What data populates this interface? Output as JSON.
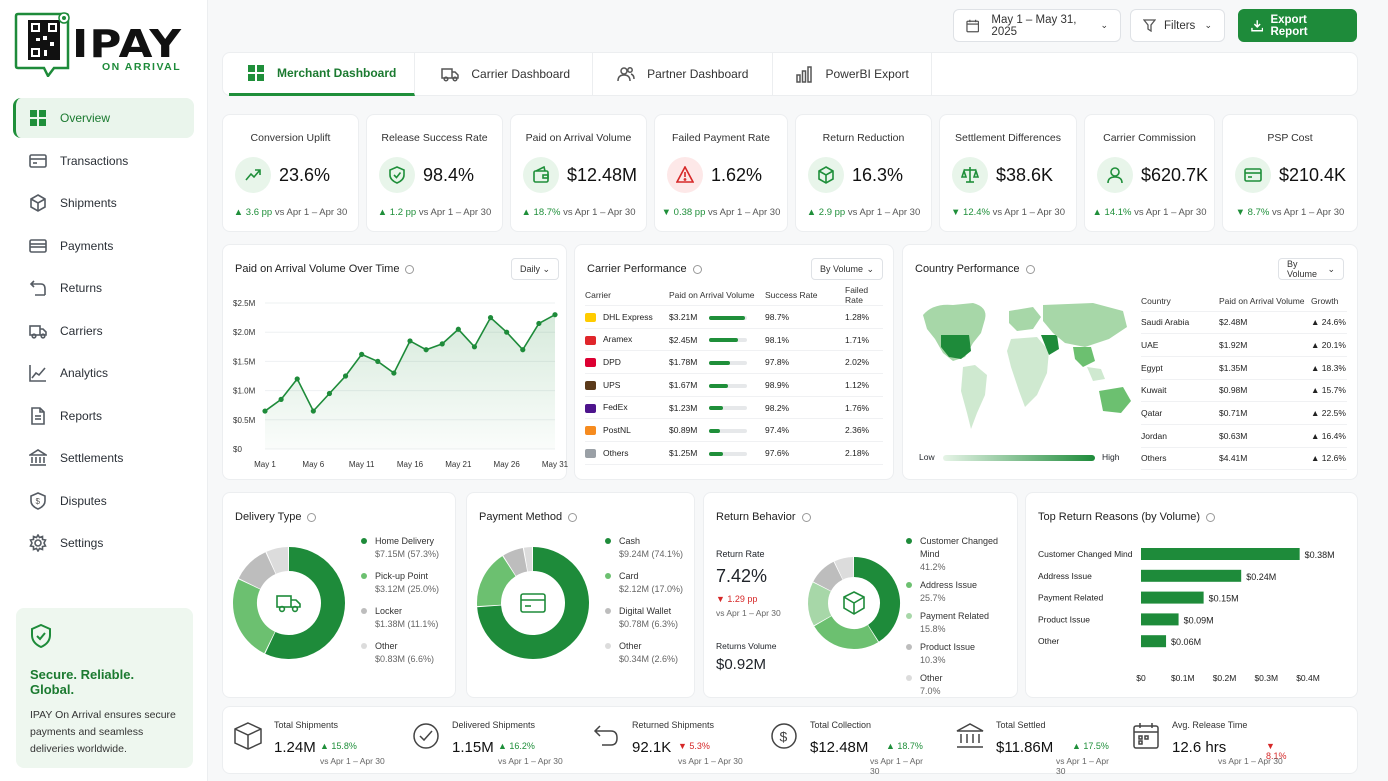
{
  "brand": {
    "name": "IPAY",
    "tagline": "ON ARRIVAL",
    "accent": "#1e8b3a"
  },
  "sidebar": {
    "items": [
      {
        "label": "Overview",
        "icon": "grid-icon"
      },
      {
        "label": "Transactions",
        "icon": "card-icon"
      },
      {
        "label": "Shipments",
        "icon": "box-icon"
      },
      {
        "label": "Payments",
        "icon": "wallet-icon"
      },
      {
        "label": "Returns",
        "icon": "return-icon"
      },
      {
        "label": "Carriers",
        "icon": "truck-icon"
      },
      {
        "label": "Analytics",
        "icon": "chart-icon"
      },
      {
        "label": "Reports",
        "icon": "report-icon"
      },
      {
        "label": "Settlements",
        "icon": "bank-icon"
      },
      {
        "label": "Disputes",
        "icon": "dispute-icon"
      },
      {
        "label": "Settings",
        "icon": "gear-icon"
      }
    ],
    "promo": {
      "title": "Secure. Reliable. Global.",
      "text": "IPAY On Arrival ensures secure payments and seamless deliveries worldwide."
    }
  },
  "topbar": {
    "date_range": "May 1 – May 31, 2025",
    "filters": "Filters",
    "export": "Export Report"
  },
  "tabs": [
    "Merchant Dashboard",
    "Carrier Dashboard",
    "Partner Dashboard",
    "PowerBI Export"
  ],
  "kpis": [
    {
      "title": "Conversion Uplift",
      "value": "23.6%",
      "delta": "▲ 3.6 pp",
      "dir": "up",
      "cmp": "vs Apr 1 – Apr 30"
    },
    {
      "title": "Release Success Rate",
      "value": "98.4%",
      "delta": "▲ 1.2 pp",
      "dir": "up",
      "cmp": "vs Apr 1 – Apr 30"
    },
    {
      "title": "Paid on Arrival Volume",
      "value": "$12.48M",
      "delta": "▲ 18.7%",
      "dir": "up",
      "cmp": "vs Apr 1 – Apr 30"
    },
    {
      "title": "Failed Payment Rate",
      "value": "1.62%",
      "delta": "▼ 0.38 pp",
      "dir": "up",
      "cmp": "vs Apr 1 – Apr 30"
    },
    {
      "title": "Return Reduction",
      "value": "16.3%",
      "delta": "▲ 2.9 pp",
      "dir": "up",
      "cmp": "vs Apr 1 – Apr 30"
    },
    {
      "title": "Settlement Differences",
      "value": "$38.6K",
      "delta": "▼ 12.4%",
      "dir": "up",
      "cmp": "vs Apr 1 – Apr 30"
    },
    {
      "title": "Carrier Commission",
      "value": "$620.7K",
      "delta": "▲ 14.1%",
      "dir": "up",
      "cmp": "vs Apr 1 – Apr 30"
    },
    {
      "title": "PSP Cost",
      "value": "$210.4K",
      "delta": "▼ 8.7%",
      "dir": "up",
      "cmp": "vs Apr 1 – Apr 30"
    }
  ],
  "volume_chart": {
    "title": "Paid on Arrival Volume Over Time",
    "select": "Daily"
  },
  "chart_data": {
    "type": "area",
    "x": [
      "May 1",
      "May 2",
      "May 4",
      "May 6",
      "May 8",
      "May 10",
      "May 11",
      "May 13",
      "May 15",
      "May 16",
      "May 18",
      "May 20",
      "May 21",
      "May 23",
      "May 25",
      "May 26",
      "May 28",
      "May 30",
      "May 31"
    ],
    "series": [
      {
        "values": [
          0.65,
          0.85,
          1.2,
          0.65,
          0.95,
          1.25,
          1.62,
          1.5,
          1.3,
          1.85,
          1.7,
          1.8,
          2.05,
          1.75,
          2.25,
          2.0,
          1.7,
          2.15,
          2.3
        ]
      }
    ],
    "xticks": [
      "May 1",
      "May 6",
      "May 11",
      "May 16",
      "May 21",
      "May 26",
      "May 31"
    ],
    "yticks": [
      "$2.5M",
      "$2.0M",
      "$1.5M",
      "$1.0M",
      "$0.5M",
      "$0"
    ],
    "ylim": [
      0,
      2.5
    ]
  },
  "carrier": {
    "title": "Carrier Performance",
    "select": "By Volume",
    "headers": [
      "Carrier",
      "Paid on Arrival Volume",
      "Success Rate",
      "Failed Rate"
    ],
    "rows": [
      {
        "name": "DHL Express",
        "vol": "$3.21M",
        "pct": 0.95,
        "success": "98.7%",
        "failed": "1.28%",
        "color": "#ffcc00"
      },
      {
        "name": "Aramex",
        "vol": "$2.45M",
        "pct": 0.75,
        "success": "98.1%",
        "failed": "1.71%",
        "color": "#e0262b"
      },
      {
        "name": "DPD",
        "vol": "$1.78M",
        "pct": 0.55,
        "success": "97.8%",
        "failed": "2.02%",
        "color": "#dc0032"
      },
      {
        "name": "UPS",
        "vol": "$1.67M",
        "pct": 0.5,
        "success": "98.9%",
        "failed": "1.12%",
        "color": "#5b3a1a"
      },
      {
        "name": "FedEx",
        "vol": "$1.23M",
        "pct": 0.38,
        "success": "98.2%",
        "failed": "1.76%",
        "color": "#4d148c"
      },
      {
        "name": "PostNL",
        "vol": "$0.89M",
        "pct": 0.28,
        "success": "97.4%",
        "failed": "2.36%",
        "color": "#f68b1f"
      },
      {
        "name": "Others",
        "vol": "$1.25M",
        "pct": 0.38,
        "success": "97.6%",
        "failed": "2.18%",
        "color": "#9aa0a6"
      }
    ]
  },
  "country": {
    "title": "Country Performance",
    "select": "By Volume",
    "headers": [
      "Country",
      "Paid on Arrival Volume",
      "Growth"
    ],
    "low": "Low",
    "high": "High",
    "rows": [
      {
        "name": "Saudi Arabia",
        "vol": "$2.48M",
        "growth": "▲ 24.6%"
      },
      {
        "name": "UAE",
        "vol": "$1.92M",
        "growth": "▲ 20.1%"
      },
      {
        "name": "Egypt",
        "vol": "$1.35M",
        "growth": "▲ 18.3%"
      },
      {
        "name": "Kuwait",
        "vol": "$0.98M",
        "growth": "▲ 15.7%"
      },
      {
        "name": "Qatar",
        "vol": "$0.71M",
        "growth": "▲ 22.5%"
      },
      {
        "name": "Jordan",
        "vol": "$0.63M",
        "growth": "▲ 16.4%"
      },
      {
        "name": "Others",
        "vol": "$4.41M",
        "growth": "▲ 12.6%"
      }
    ]
  },
  "delivery": {
    "title": "Delivery Type",
    "items": [
      {
        "label": "Home Delivery",
        "sub": "$7.15M (57.3%)",
        "pct": 57.3,
        "color": "#1e8b3a"
      },
      {
        "label": "Pick-up Point",
        "sub": "$3.12M (25.0%)",
        "pct": 25.0,
        "color": "#6cc070"
      },
      {
        "label": "Locker",
        "sub": "$1.38M (11.1%)",
        "pct": 11.1,
        "color": "#bdbdbd"
      },
      {
        "label": "Other",
        "sub": "$0.83M (6.6%)",
        "pct": 6.6,
        "color": "#dcdcdc"
      }
    ]
  },
  "payment": {
    "title": "Payment Method",
    "items": [
      {
        "label": "Cash",
        "sub": "$9.24M (74.1%)",
        "pct": 74.1,
        "color": "#1e8b3a"
      },
      {
        "label": "Card",
        "sub": "$2.12M (17.0%)",
        "pct": 17.0,
        "color": "#6cc070"
      },
      {
        "label": "Digital Wallet",
        "sub": "$0.78M (6.3%)",
        "pct": 6.3,
        "color": "#bdbdbd"
      },
      {
        "label": "Other",
        "sub": "$0.34M (2.6%)",
        "pct": 2.6,
        "color": "#dcdcdc"
      }
    ]
  },
  "returns": {
    "title": "Return Behavior",
    "rate_label": "Return Rate",
    "rate": "7.42%",
    "rate_delta": "▼ 1.29 pp",
    "rate_cmp": "vs Apr 1 – Apr 30",
    "vol_label": "Returns Volume",
    "vol": "$0.92M",
    "items": [
      {
        "label": "Customer Changed Mind",
        "sub": "41.2%",
        "pct": 41.2,
        "color": "#1e8b3a"
      },
      {
        "label": "Address Issue",
        "sub": "25.7%",
        "pct": 25.7,
        "color": "#6cc070"
      },
      {
        "label": "Payment Related",
        "sub": "15.8%",
        "pct": 15.8,
        "color": "#a7d7a8"
      },
      {
        "label": "Product Issue",
        "sub": "10.3%",
        "pct": 10.3,
        "color": "#bdbdbd"
      },
      {
        "label": "Other",
        "sub": "7.0%",
        "pct": 7.0,
        "color": "#dcdcdc"
      }
    ]
  },
  "reasons": {
    "title": "Top Return Reasons (by Volume)",
    "xticks": [
      "$0",
      "$0.1M",
      "$0.2M",
      "$0.3M",
      "$0.4M"
    ],
    "items": [
      {
        "label": "Customer Changed Mind",
        "value": 0.38,
        "text": "$0.38M"
      },
      {
        "label": "Address Issue",
        "value": 0.24,
        "text": "$0.24M"
      },
      {
        "label": "Payment Related",
        "value": 0.15,
        "text": "$0.15M"
      },
      {
        "label": "Product Issue",
        "value": 0.09,
        "text": "$0.09M"
      },
      {
        "label": "Other",
        "value": 0.06,
        "text": "$0.06M"
      }
    ]
  },
  "bottom": [
    {
      "label": "Total Shipments",
      "value": "1.24M",
      "delta": "▲ 15.8%",
      "dir": "up",
      "cmp": "vs Apr 1 – Apr 30",
      "icon": "box-icon"
    },
    {
      "label": "Delivered Shipments",
      "value": "1.15M",
      "delta": "▲ 16.2%",
      "dir": "up",
      "cmp": "vs Apr 1 – Apr 30",
      "icon": "check-icon"
    },
    {
      "label": "Returned Shipments",
      "value": "92.1K",
      "delta": "▼ 5.3%",
      "dir": "dn",
      "cmp": "vs Apr 1 – Apr 30",
      "icon": "return-icon"
    },
    {
      "label": "Total Collection",
      "value": "$12.48M",
      "delta": "▲ 18.7%",
      "dir": "up",
      "cmp": "vs Apr 1 – Apr 30",
      "icon": "dollar-icon"
    },
    {
      "label": "Total Settled",
      "value": "$11.86M",
      "delta": "▲ 17.5%",
      "dir": "up",
      "cmp": "vs Apr 1 – Apr 30",
      "icon": "bank-icon"
    },
    {
      "label": "Avg. Release Time",
      "value": "12.6 hrs",
      "delta": "▼ 8.1%",
      "dir": "dn",
      "cmp": "vs Apr 1 – Apr 30",
      "icon": "calendar-icon"
    }
  ]
}
